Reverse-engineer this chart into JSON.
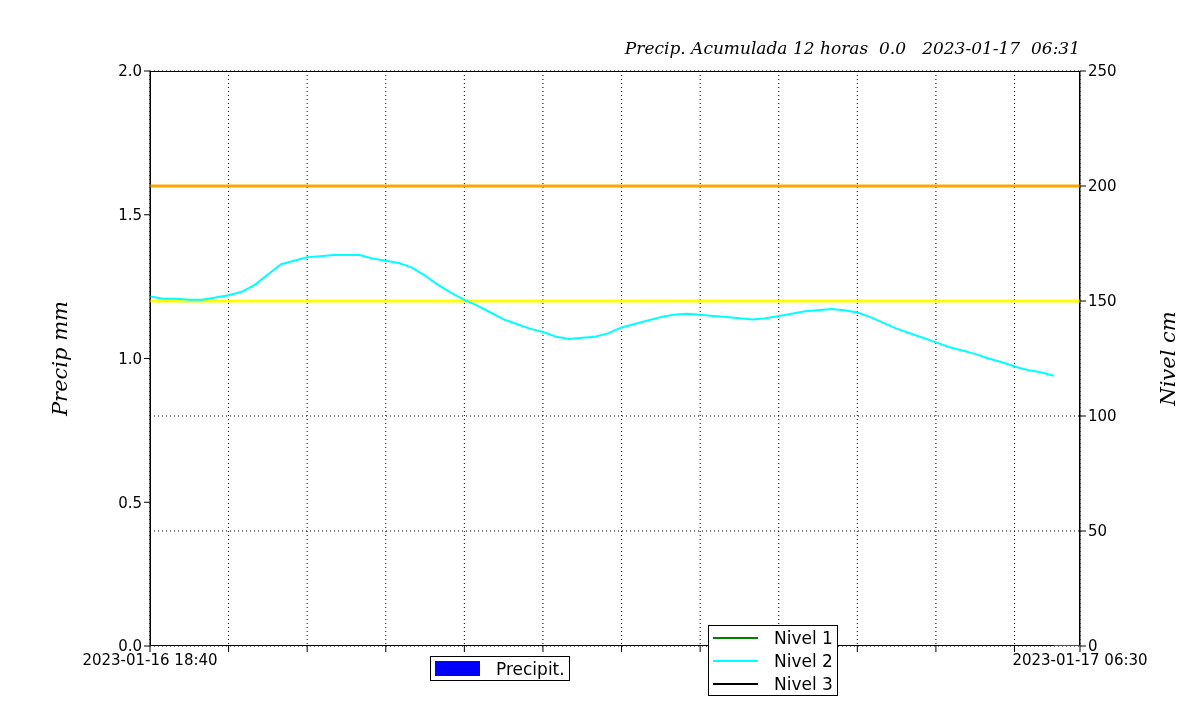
{
  "chart_data": {
    "type": "line",
    "title": "Precip. Acumulada 12 horas  0.0   2023-01-17  06:31",
    "ylabel": "Precip mm",
    "y2label": "Nivel cm",
    "xlim": [
      "2023-01-16T18:40",
      "2023-01-17T06:30"
    ],
    "xticks": [
      {
        "value": "2023-01-16T18:40",
        "label": "2023-01-16 18:40"
      },
      {
        "value": "2023-01-16T19:40",
        "label": null
      },
      {
        "value": "2023-01-16T20:40",
        "label": null
      },
      {
        "value": "2023-01-16T21:40",
        "label": null
      },
      {
        "value": "2023-01-16T22:40",
        "label": null
      },
      {
        "value": "2023-01-16T23:40",
        "label": null
      },
      {
        "value": "2023-01-17T00:40",
        "label": null
      },
      {
        "value": "2023-01-17T01:40",
        "label": null
      },
      {
        "value": "2023-01-17T02:40",
        "label": null
      },
      {
        "value": "2023-01-17T03:40",
        "label": null
      },
      {
        "value": "2023-01-17T04:40",
        "label": null
      },
      {
        "value": "2023-01-17T05:40",
        "label": null
      },
      {
        "value": "2023-01-17T06:30",
        "label": "2023-01-17 06:30"
      }
    ],
    "ylim": [
      0,
      2
    ],
    "yticks": [
      {
        "value": 0,
        "label": "0.0"
      },
      {
        "value": 0.5,
        "label": "0.5"
      },
      {
        "value": 1,
        "label": "1.0"
      },
      {
        "value": 1.5,
        "label": "1.5"
      },
      {
        "value": 2,
        "label": "2.0"
      }
    ],
    "y2lim": [
      0,
      250
    ],
    "y2ticks": [
      0,
      50,
      100,
      150,
      200,
      250
    ],
    "grid": true,
    "legend": "bottom",
    "line_style": "solid",
    "marker": "none",
    "ref_lines": [
      {
        "axis": "y2",
        "value": 200,
        "color": "#ffa500"
      },
      {
        "axis": "y2",
        "value": 150,
        "color": "#ffff00"
      }
    ],
    "series": [
      {
        "name": "Precipit.",
        "type": "bar",
        "color": "#0000ff",
        "x": [
          "2023-01-16T18:40",
          "2023-01-17T06:30"
        ],
        "values": [
          0,
          0
        ]
      },
      {
        "name": "Nivel 1",
        "color": "#008000",
        "axis": "y2"
      },
      {
        "name": "Nivel 2",
        "color": "#00ffff",
        "axis": "y2",
        "x": [
          "2023-01-16T18:40",
          "2023-01-16T18:50",
          "2023-01-16T19:00",
          "2023-01-16T19:10",
          "2023-01-16T19:20",
          "2023-01-16T19:30",
          "2023-01-16T19:40",
          "2023-01-16T19:50",
          "2023-01-16T20:00",
          "2023-01-16T20:10",
          "2023-01-16T20:20",
          "2023-01-16T20:30",
          "2023-01-16T20:40",
          "2023-01-16T20:50",
          "2023-01-16T21:00",
          "2023-01-16T21:10",
          "2023-01-16T21:20",
          "2023-01-16T21:30",
          "2023-01-16T21:40",
          "2023-01-16T21:50",
          "2023-01-16T22:00",
          "2023-01-16T22:10",
          "2023-01-16T22:20",
          "2023-01-16T22:30",
          "2023-01-16T22:40",
          "2023-01-16T22:50",
          "2023-01-16T23:00",
          "2023-01-16T23:10",
          "2023-01-16T23:20",
          "2023-01-16T23:30",
          "2023-01-16T23:40",
          "2023-01-16T23:50",
          "2023-01-17T00:00",
          "2023-01-17T00:10",
          "2023-01-17T00:20",
          "2023-01-17T00:30",
          "2023-01-17T00:40",
          "2023-01-17T00:50",
          "2023-01-17T01:00",
          "2023-01-17T01:10",
          "2023-01-17T01:20",
          "2023-01-17T01:30",
          "2023-01-17T01:40",
          "2023-01-17T01:50",
          "2023-01-17T02:00",
          "2023-01-17T02:10",
          "2023-01-17T02:20",
          "2023-01-17T02:30",
          "2023-01-17T02:40",
          "2023-01-17T02:50",
          "2023-01-17T03:00",
          "2023-01-17T03:10",
          "2023-01-17T03:20",
          "2023-01-17T03:30",
          "2023-01-17T03:40",
          "2023-01-17T03:50",
          "2023-01-17T04:00",
          "2023-01-17T04:10",
          "2023-01-17T04:20",
          "2023-01-17T04:30",
          "2023-01-17T04:40",
          "2023-01-17T04:50",
          "2023-01-17T05:00",
          "2023-01-17T05:10",
          "2023-01-17T05:20",
          "2023-01-17T05:30",
          "2023-01-17T05:40",
          "2023-01-17T05:50",
          "2023-01-17T06:00",
          "2023-01-17T06:10"
        ],
        "values": [
          152,
          151,
          151,
          150.5,
          150.5,
          151.5,
          152.5,
          154,
          157,
          161.5,
          166,
          167.5,
          169,
          169.5,
          170,
          170,
          170,
          168.5,
          167.5,
          166.5,
          164.5,
          161,
          157,
          153.5,
          150.5,
          148,
          145,
          142,
          140,
          138,
          136.5,
          134.5,
          133.5,
          134,
          134.5,
          136,
          138.5,
          140,
          141.5,
          143,
          144,
          144.5,
          144,
          143.5,
          143,
          142.5,
          142,
          142.5,
          143.5,
          144.5,
          145.5,
          146,
          146.5,
          146,
          145,
          143,
          140.5,
          138,
          136,
          134,
          132,
          130,
          128.5,
          127,
          125,
          123.5,
          121.5,
          120,
          119,
          117.5
        ]
      },
      {
        "name": "Nivel 3",
        "color": "#000000",
        "axis": "y2",
        "x": [
          "2023-01-16T18:40",
          "2023-01-17T06:10"
        ],
        "values": [
          0,
          0
        ]
      }
    ]
  }
}
